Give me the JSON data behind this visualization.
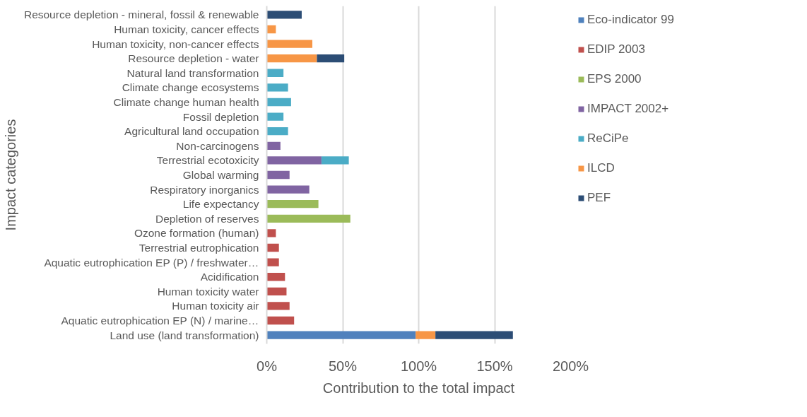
{
  "chart_data": {
    "type": "bar",
    "orientation": "horizontal",
    "stacked": true,
    "xlabel": "Contribution to the total impact",
    "ylabel": "Impact categories",
    "categories": [
      "Resource depletion - mineral, fossil & renewable",
      "Human toxicity, cancer effects",
      "Human toxicity, non-cancer effects",
      "Resource depletion - water",
      "Natural land transformation",
      "Climate change ecosystems",
      "Climate change human health",
      "Fossil depletion",
      "Agricultural land occupation",
      "Non-carcinogens",
      "Terrestrial ecotoxicity",
      "Global warming",
      "Respiratory inorganics",
      "Life expectancy",
      "Depletion of reserves",
      "Ozone formation (human)",
      "Terrestrial eutrophication",
      "Aquatic eutrophication EP (P) / freshwater…",
      "Acidification",
      "Human toxicity water",
      "Human toxicity air",
      "Aquatic eutrophication EP (N) / marine…",
      "Land use (land transformation)"
    ],
    "series": [
      {
        "name": "Eco-indicator 99",
        "color": "#4f81bd",
        "values": [
          null,
          null,
          null,
          null,
          null,
          null,
          null,
          null,
          null,
          null,
          null,
          null,
          null,
          null,
          null,
          null,
          null,
          null,
          null,
          null,
          null,
          null,
          98
        ]
      },
      {
        "name": "EDIP 2003",
        "color": "#c0504d",
        "values": [
          null,
          null,
          null,
          null,
          null,
          null,
          null,
          null,
          null,
          null,
          null,
          null,
          null,
          null,
          null,
          6,
          8,
          8,
          12,
          13,
          15,
          18,
          null
        ]
      },
      {
        "name": "EPS 2000",
        "color": "#9bbb59",
        "values": [
          null,
          null,
          null,
          null,
          null,
          null,
          null,
          null,
          null,
          null,
          null,
          null,
          null,
          34,
          55,
          null,
          null,
          null,
          null,
          null,
          null,
          null,
          null
        ]
      },
      {
        "name": "IMPACT 2002+",
        "color": "#8064a2",
        "values": [
          null,
          null,
          null,
          null,
          null,
          null,
          null,
          null,
          null,
          9,
          36,
          15,
          28,
          null,
          null,
          null,
          null,
          null,
          null,
          null,
          null,
          null,
          null
        ]
      },
      {
        "name": "ReCiPe",
        "color": "#4bacc6",
        "values": [
          null,
          null,
          null,
          null,
          11,
          14,
          16,
          11,
          14,
          null,
          18,
          null,
          null,
          null,
          null,
          null,
          null,
          null,
          null,
          null,
          null,
          null,
          null
        ]
      },
      {
        "name": "ILCD",
        "color": "#f79646",
        "values": [
          null,
          6,
          30,
          33,
          null,
          null,
          null,
          null,
          null,
          null,
          null,
          null,
          null,
          null,
          null,
          null,
          null,
          null,
          null,
          null,
          null,
          null,
          13
        ]
      },
      {
        "name": "PEF",
        "color": "#2c4d75",
        "values": [
          23,
          null,
          null,
          18,
          null,
          null,
          null,
          null,
          null,
          null,
          null,
          null,
          null,
          null,
          null,
          null,
          null,
          null,
          null,
          null,
          null,
          null,
          51
        ]
      }
    ],
    "xlim": [
      0,
      200
    ],
    "xticks": [
      {
        "value": 0,
        "label": "0%"
      },
      {
        "value": 50,
        "label": "50%"
      },
      {
        "value": 100,
        "label": "100%"
      },
      {
        "value": 150,
        "label": "150%"
      },
      {
        "value": 200,
        "label": "200%"
      }
    ],
    "grid": "x",
    "legend": "right"
  }
}
